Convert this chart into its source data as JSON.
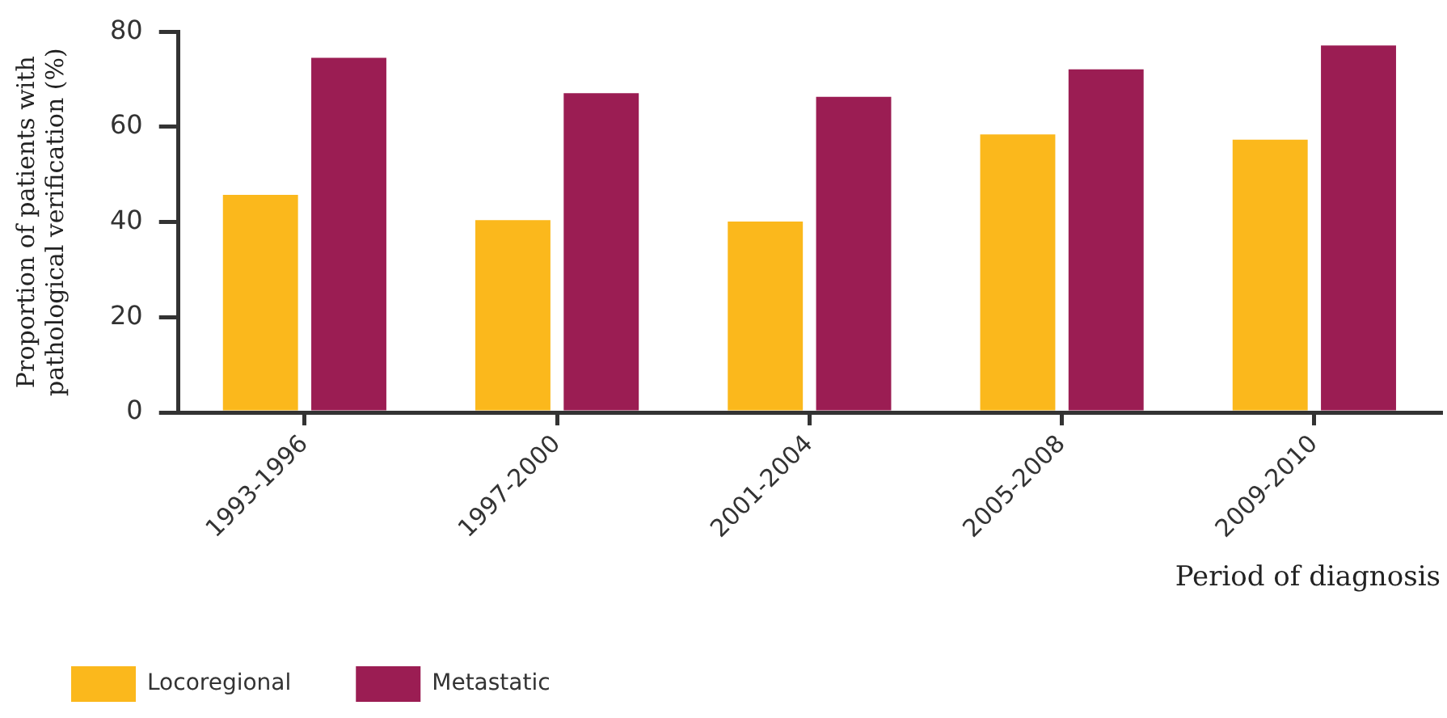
{
  "chart_data": {
    "type": "bar",
    "xlabel": "Period of diagnosis",
    "ylabel": "Proportion of patients with pathological verification (%)",
    "categories": [
      "1993-1996",
      "1997-2000",
      "2001-2004",
      "2005-2008",
      "2009-2010"
    ],
    "series": [
      {
        "name": "Locoregional",
        "color": "#fbb81c",
        "values": [
          45.7,
          40.4,
          40.1,
          58.4,
          57.3
        ]
      },
      {
        "name": "Metastatic",
        "color": "#9b1d53",
        "values": [
          74.5,
          67.1,
          66.3,
          72.1,
          77.1
        ]
      }
    ],
    "ylim": [
      0,
      80
    ],
    "yticks": [
      0,
      20,
      40,
      60,
      80
    ],
    "grid": false,
    "legend": "bottom"
  }
}
